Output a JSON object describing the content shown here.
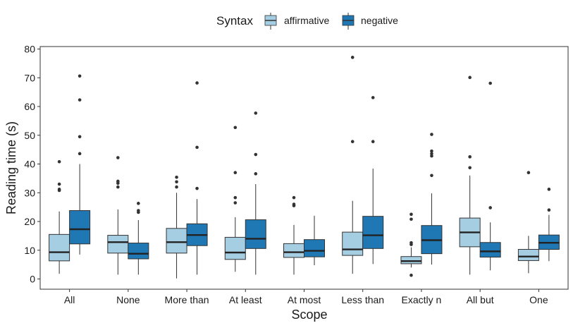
{
  "chart_data": {
    "type": "boxplot",
    "title": "",
    "xlabel": "Scope",
    "ylabel": "Reading time (s)",
    "ylim": [
      -3,
      81
    ],
    "yticks": [
      0,
      10,
      20,
      30,
      40,
      50,
      60,
      70,
      80
    ],
    "grid": false,
    "legend": {
      "title": "Syntax",
      "position": "top",
      "entries": [
        {
          "name": "affirmative",
          "color": "#a6cee3"
        },
        {
          "name": "negative",
          "color": "#1f78b4"
        }
      ]
    },
    "categories": [
      "All",
      "None",
      "More than",
      "At least",
      "At most",
      "Less than",
      "Exactly n",
      "All but",
      "One"
    ],
    "series": [
      {
        "name": "affirmative",
        "color": "#a6cee3",
        "boxes": [
          {
            "whisker_low": 1.8,
            "q1": 6.3,
            "median": 9.3,
            "q3": 15.5,
            "whisker_high": 23.5,
            "outliers": [
              30.8,
              31.2,
              33.0,
              40.8
            ]
          },
          {
            "whisker_low": 1.5,
            "q1": 9.0,
            "median": 12.8,
            "q3": 15.2,
            "whisker_high": 24.2,
            "outliers": [
              32.0,
              33.3,
              34.0,
              42.2
            ]
          },
          {
            "whisker_low": 0.2,
            "q1": 9.0,
            "median": 12.8,
            "q3": 17.6,
            "whisker_high": 30.0,
            "outliers": [
              32.0,
              33.8,
              35.4
            ]
          },
          {
            "whisker_low": 2.5,
            "q1": 6.8,
            "median": 9.2,
            "q3": 14.5,
            "whisker_high": 21.5,
            "outliers": [
              26.5,
              28.3,
              37.0,
              52.7
            ]
          },
          {
            "whisker_low": 1.5,
            "q1": 7.5,
            "median": 9.3,
            "q3": 12.3,
            "whisker_high": 18.8,
            "outliers": [
              25.5,
              26.0,
              28.3
            ]
          },
          {
            "whisker_low": 1.8,
            "q1": 8.2,
            "median": 10.3,
            "q3": 16.3,
            "whisker_high": 27.2,
            "outliers": [
              47.8,
              77.1
            ]
          },
          {
            "whisker_low": 4.0,
            "q1": 5.3,
            "median": 6.2,
            "q3": 7.8,
            "whisker_high": 11.0,
            "outliers": [
              1.3,
              12.0,
              12.6,
              20.8,
              22.5
            ]
          },
          {
            "whisker_low": 1.5,
            "q1": 11.2,
            "median": 16.2,
            "q3": 21.2,
            "whisker_high": 36.0,
            "outliers": [
              38.7,
              42.5,
              70.1
            ]
          },
          {
            "whisker_low": 2.0,
            "q1": 6.4,
            "median": 7.8,
            "q3": 10.3,
            "whisker_high": 15.0,
            "outliers": [
              37.0
            ]
          }
        ]
      },
      {
        "name": "negative",
        "color": "#1f78b4",
        "boxes": [
          {
            "whisker_low": 8.5,
            "q1": 12.2,
            "median": 17.3,
            "q3": 23.8,
            "whisker_high": 40.0,
            "outliers": [
              43.6,
              49.5,
              62.3,
              70.6
            ]
          },
          {
            "whisker_low": 1.5,
            "q1": 7.0,
            "median": 8.8,
            "q3": 12.5,
            "whisker_high": 20.5,
            "outliers": [
              23.2,
              23.8,
              26.3
            ]
          },
          {
            "whisker_low": 1.5,
            "q1": 11.6,
            "median": 15.3,
            "q3": 19.2,
            "whisker_high": 27.8,
            "outliers": [
              31.5,
              45.8,
              68.2
            ]
          },
          {
            "whisker_low": 1.5,
            "q1": 10.6,
            "median": 14.0,
            "q3": 20.6,
            "whisker_high": 33.0,
            "outliers": [
              36.6,
              43.3,
              57.7
            ]
          },
          {
            "whisker_low": 4.8,
            "q1": 7.7,
            "median": 9.8,
            "q3": 13.7,
            "whisker_high": 22.0,
            "outliers": []
          },
          {
            "whisker_low": 5.2,
            "q1": 10.6,
            "median": 15.2,
            "q3": 21.8,
            "whisker_high": 38.4,
            "outliers": [
              47.8,
              63.1
            ]
          },
          {
            "whisker_low": 5.0,
            "q1": 8.8,
            "median": 13.5,
            "q3": 18.6,
            "whisker_high": 29.8,
            "outliers": [
              36.0,
              42.8,
              43.6,
              44.5,
              50.3
            ]
          },
          {
            "whisker_low": 3.0,
            "q1": 7.6,
            "median": 9.6,
            "q3": 12.7,
            "whisker_high": 19.7,
            "outliers": [
              24.8,
              68.1
            ]
          },
          {
            "whisker_low": 6.2,
            "q1": 10.3,
            "median": 12.6,
            "q3": 15.3,
            "whisker_high": 22.3,
            "outliers": [
              24.0,
              31.2
            ]
          }
        ]
      }
    ]
  }
}
